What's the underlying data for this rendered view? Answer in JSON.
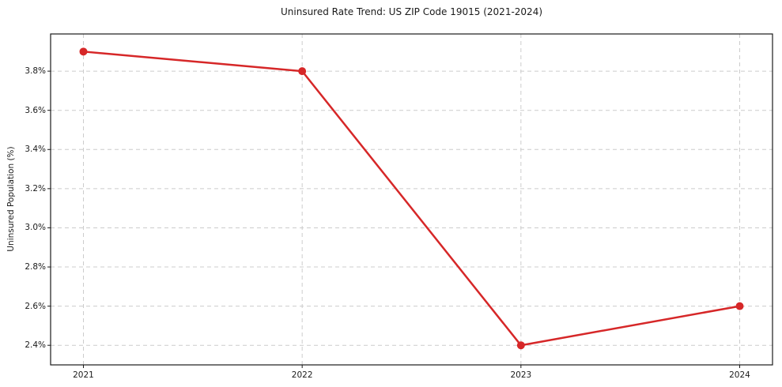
{
  "chart_data": {
    "type": "line",
    "title": "Uninsured Rate Trend: US ZIP Code 19015 (2021-2024)",
    "xlabel": "",
    "ylabel": "Uninsured Population (%)",
    "x": [
      2021,
      2022,
      2023,
      2024
    ],
    "values": [
      3.9,
      3.8,
      2.4,
      2.6
    ],
    "xtick_labels": [
      "2021",
      "2022",
      "2023",
      "2024"
    ],
    "ytick_values": [
      2.4,
      2.6,
      2.8,
      3.0,
      3.2,
      3.4,
      3.6,
      3.8
    ],
    "ytick_labels": [
      "2.4%",
      "2.6%",
      "2.8%",
      "3.0%",
      "3.2%",
      "3.4%",
      "3.6%",
      "3.8%"
    ],
    "xlim": [
      2020.85,
      2024.15
    ],
    "ylim": [
      2.3,
      3.99
    ],
    "grid": true,
    "legend": false,
    "line_color": "#d62728",
    "marker": "circle",
    "marker_radius": 5
  }
}
